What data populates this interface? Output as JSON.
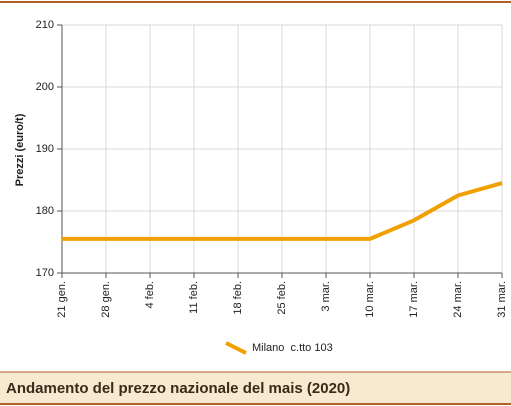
{
  "chart_data": {
    "type": "line",
    "title": "Andamento del prezzo nazionale del mais (2020)",
    "ylabel": "Prezzi (euro/t)",
    "categories": [
      "21 gen.",
      "28 gen.",
      "4 feb.",
      "11 feb.",
      "18 feb.",
      "25 feb.",
      "3 mar.",
      "10 mar.",
      "17 mar.",
      "24 mar.",
      "31 mar."
    ],
    "series": [
      {
        "name": "Milano  c.tto 103",
        "color": "#f0a000",
        "values": [
          175.5,
          175.5,
          175.5,
          175.5,
          175.5,
          175.5,
          175.5,
          175.5,
          178.5,
          182.5,
          184.5
        ]
      }
    ],
    "ylim": [
      170,
      210
    ],
    "yticks": [
      170,
      180,
      190,
      200,
      210
    ],
    "grid": true
  }
}
